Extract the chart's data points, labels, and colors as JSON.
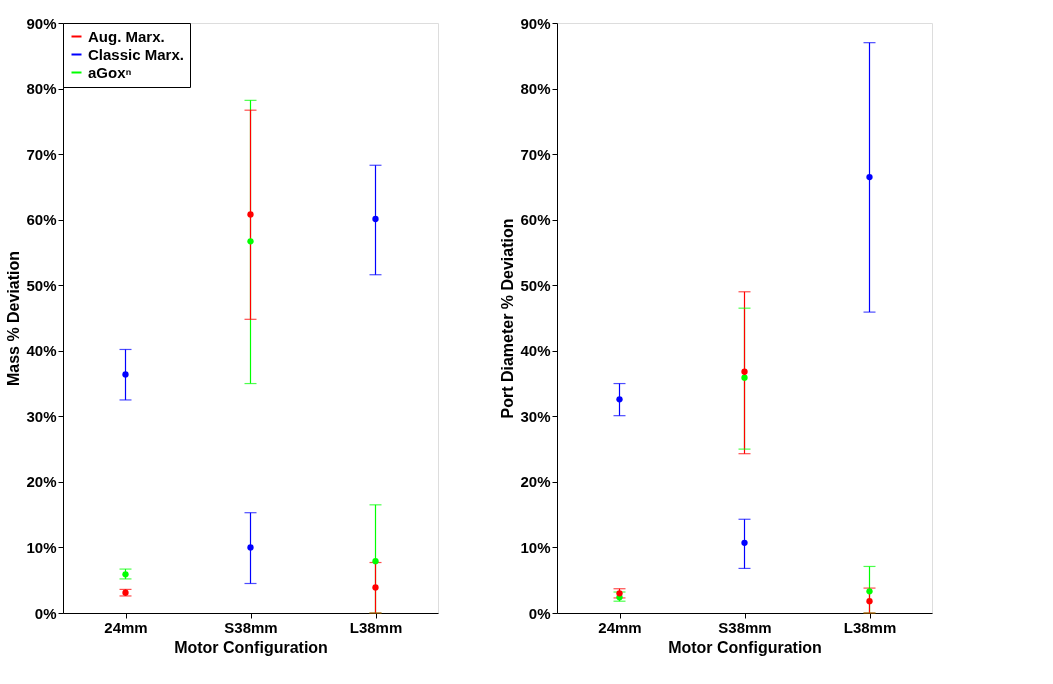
{
  "chart_data": [
    {
      "type": "scatter",
      "xlabel": "Motor Configuration",
      "ylabel": "Mass % Deviation",
      "categories": [
        "24mm",
        "S38mm",
        "L38mm"
      ],
      "ylim": [
        0,
        90
      ],
      "yticks": [
        {
          "value": 0,
          "label": "0%"
        },
        {
          "value": 10,
          "label": "10%"
        },
        {
          "value": 20,
          "label": "20%"
        },
        {
          "value": 30,
          "label": "30%"
        },
        {
          "value": 40,
          "label": "40%"
        },
        {
          "value": 50,
          "label": "50%"
        },
        {
          "value": 60,
          "label": "60%"
        },
        {
          "value": 70,
          "label": "70%"
        },
        {
          "value": 80,
          "label": "80%"
        },
        {
          "value": 90,
          "label": "90%"
        }
      ],
      "marker": "circle",
      "grid": false,
      "legend": "top left",
      "series": [
        {
          "name": "Aug. Marx.",
          "color": "#ff0000",
          "values": [
            3.1,
            60.8,
            3.9
          ],
          "errors": [
            [
              2.6,
              3.6
            ],
            [
              44.8,
              76.7
            ],
            [
              0,
              7.7
            ]
          ]
        },
        {
          "name": "Classic Marx.",
          "color": "#0000ff",
          "values": [
            36.4,
            10.0,
            60.1
          ],
          "errors": [
            [
              32.5,
              40.2
            ],
            [
              4.5,
              15.3
            ],
            [
              51.6,
              68.3
            ]
          ]
        },
        {
          "name": "aGoxⁿ",
          "color": "#00ff00",
          "values": [
            5.9,
            56.7,
            7.9
          ],
          "errors": [
            [
              5.2,
              6.7
            ],
            [
              35.0,
              78.2
            ],
            [
              0,
              16.5
            ]
          ]
        }
      ]
    },
    {
      "type": "scatter",
      "xlabel": "Motor Configuration",
      "ylabel": "Port Diameter % Deviation",
      "categories": [
        "24mm",
        "S38mm",
        "L38mm"
      ],
      "ylim": [
        0,
        90
      ],
      "yticks": [
        {
          "value": 0,
          "label": "0%"
        },
        {
          "value": 10,
          "label": "10%"
        },
        {
          "value": 20,
          "label": "20%"
        },
        {
          "value": 30,
          "label": "30%"
        },
        {
          "value": 40,
          "label": "40%"
        },
        {
          "value": 50,
          "label": "50%"
        },
        {
          "value": 60,
          "label": "60%"
        },
        {
          "value": 70,
          "label": "70%"
        },
        {
          "value": 80,
          "label": "80%"
        },
        {
          "value": 90,
          "label": "90%"
        }
      ],
      "marker": "circle",
      "grid": false,
      "series": [
        {
          "name": "Aug. Marx.",
          "color": "#ff0000",
          "values": [
            3.0,
            36.8,
            1.8
          ],
          "errors": [
            [
              2.3,
              3.7
            ],
            [
              24.3,
              49.0
            ],
            [
              0,
              3.8
            ]
          ]
        },
        {
          "name": "Classic Marx.",
          "color": "#0000ff",
          "values": [
            32.6,
            10.7,
            66.5
          ],
          "errors": [
            [
              30.1,
              35.0
            ],
            [
              6.8,
              14.3
            ],
            [
              45.9,
              87.0
            ]
          ]
        },
        {
          "name": "aGoxⁿ",
          "color": "#00ff00",
          "values": [
            2.4,
            35.9,
            3.3
          ],
          "errors": [
            [
              1.8,
              3.2
            ],
            [
              25.0,
              46.5
            ],
            [
              0,
              7.1
            ]
          ]
        }
      ]
    }
  ]
}
